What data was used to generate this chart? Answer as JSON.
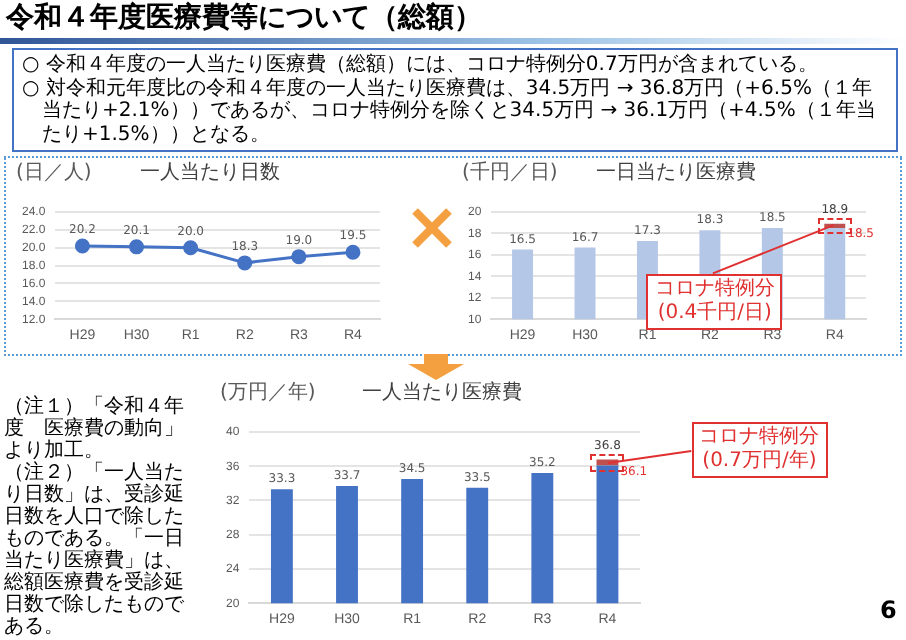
{
  "chart_data": [
    {
      "type": "other",
      "title": "令和４年度医療費等について（総額）",
      "annotations": [
        "○ 令和４年度の一人当たり医療費（総額）には、コロナ特例分0.7万円が含まれている。",
        "○ 対令和元年度比の令和４年度の一人当たり医療費は、34.5万円 → 36.8万円（+6.5%（１年当たり+2.1%））であるが、コロナ特例分を除くと34.5万円 → 36.1万円（+4.5%（１年当たり+1.5%））となる。"
      ]
    },
    {
      "type": "line",
      "title": "一人当たり日数",
      "ylabel": "(日／人)",
      "categories": [
        "H29",
        "H30",
        "R1",
        "R2",
        "R3",
        "R4"
      ],
      "series": [
        {
          "color": "#4472c4",
          "values": [
            20.2,
            20.1,
            20.0,
            18.3,
            19.0,
            19.5
          ],
          "value_labels": [
            "20.2",
            "20.1",
            "20.0",
            "18.3",
            "19.0",
            "19.5"
          ]
        }
      ],
      "ylim": [
        12,
        24
      ],
      "yticks": [
        {
          "value": 12,
          "label": "12.0"
        },
        {
          "value": 14,
          "label": "14.0"
        },
        {
          "value": 16,
          "label": "16.0"
        },
        {
          "value": 18,
          "label": "18.0"
        },
        {
          "value": 20,
          "label": "20.0"
        },
        {
          "value": 22,
          "label": "22.0"
        },
        {
          "value": 24,
          "label": "24.0"
        }
      ],
      "grid": "y",
      "marker": "circle",
      "legend": false
    },
    {
      "type": "bar",
      "title": "一日当たり医療費",
      "ylabel": "(千円／日)",
      "categories": [
        "H29",
        "H30",
        "R1",
        "R2",
        "R3",
        "R4"
      ],
      "series": [
        {
          "color": "#b4c7e7",
          "values": [
            16.5,
            16.7,
            17.3,
            18.3,
            18.5,
            18.5
          ],
          "value_labels": [
            "16.5",
            "16.7",
            "17.3",
            "18.3",
            "18.5",
            null
          ]
        },
        {
          "color": "#c0504d",
          "values": [
            null,
            null,
            null,
            null,
            null,
            0.4
          ],
          "base": [
            null,
            null,
            null,
            null,
            null,
            18.5
          ]
        }
      ],
      "totals": [
        null,
        null,
        null,
        null,
        null,
        "18.9"
      ],
      "ylim": [
        10,
        20
      ],
      "yticks": [
        10,
        12,
        14,
        16,
        18,
        20
      ],
      "grid": "y",
      "legend": false,
      "annotations": [
        "コロナ特例分\n(0.4千円/日)",
        {
          "text": "18.5",
          "x": "R4",
          "y": 18.5
        }
      ]
    },
    {
      "type": "bar",
      "title": "一人当たり医療費",
      "ylabel": "(万円／年)",
      "categories": [
        "H29",
        "H30",
        "R1",
        "R2",
        "R3",
        "R4"
      ],
      "series": [
        {
          "color": "#4472c4",
          "values": [
            33.3,
            33.7,
            34.5,
            33.5,
            35.2,
            36.1
          ],
          "value_labels": [
            "33.3",
            "33.7",
            "34.5",
            "33.5",
            "35.2",
            null
          ]
        },
        {
          "color": "#c0504d",
          "values": [
            null,
            null,
            null,
            null,
            null,
            0.7
          ],
          "base": [
            null,
            null,
            null,
            null,
            null,
            36.1
          ]
        }
      ],
      "totals": [
        null,
        null,
        null,
        null,
        null,
        "36.8"
      ],
      "ylim": [
        20,
        40
      ],
      "yticks": [
        20,
        24,
        28,
        32,
        36,
        40
      ],
      "grid": "y",
      "legend": false,
      "annotations": [
        {
          "text": "36.1",
          "x": "R4",
          "y": 36.1
        },
        "コロナ特例分\n(0.7万円/年)",
        "（注１）「令和４年度　医療費の動向」より加工。",
        "（注２）「一人当たり日数」は、受診延日数を人口で除したものである。「一日当たり医療費」は、総額医療費を受診延日数で除したものである。",
        "6"
      ]
    }
  ]
}
